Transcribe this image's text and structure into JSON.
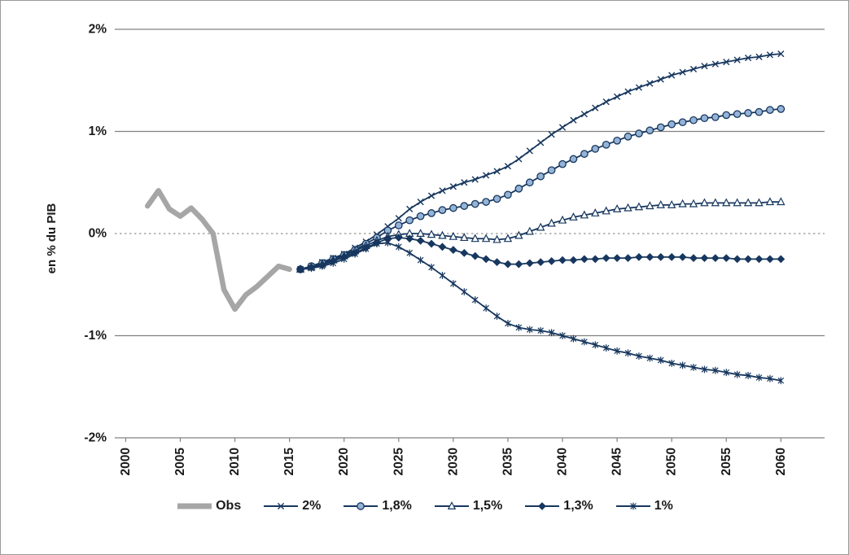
{
  "figure": {
    "background": "#FFFFFF",
    "border_color": "#999999"
  },
  "chart_data": {
    "type": "line",
    "title": "",
    "ylabel": "en % du PIB",
    "xlabel": "",
    "xlim": [
      1999,
      2064
    ],
    "ylim": [
      -2,
      2
    ],
    "grid": "horizontal solid at integers, dotted at zero",
    "legend_position": "bottom",
    "y_ticks": [
      {
        "value": 2,
        "label": "2%"
      },
      {
        "value": 1,
        "label": "1%"
      },
      {
        "value": 0,
        "label": "0%"
      },
      {
        "value": -1,
        "label": "-1%"
      },
      {
        "value": -2,
        "label": "-2%"
      }
    ],
    "x_ticks": [
      2000,
      2005,
      2010,
      2015,
      2020,
      2025,
      2030,
      2035,
      2040,
      2045,
      2050,
      2055,
      2060
    ],
    "colors": {
      "obs": "#A6A6A6",
      "projection": "#17375E",
      "circle_fill": "#95B3D7",
      "triangle_fill": "#FFFFFF",
      "grid": "#808080",
      "zero_grid": "#A6A6A6",
      "text": "#1A1A1A"
    },
    "series": [
      {
        "id": "obs",
        "name": "Obs",
        "marker": "none",
        "color_key": "obs",
        "width": 6.5,
        "x_start": 2002,
        "values": [
          0.27,
          0.42,
          0.24,
          0.17,
          0.25,
          0.14,
          0.0,
          -0.55,
          -0.74,
          -0.6,
          -0.52,
          -0.42,
          -0.32,
          -0.35
        ]
      },
      {
        "id": "g2",
        "name": "2%",
        "marker": "x",
        "color_key": "projection",
        "width": 1.8,
        "x_start": 2016,
        "values": [
          -0.35,
          -0.32,
          -0.28,
          -0.24,
          -0.2,
          -0.14,
          -0.08,
          -0.01,
          0.07,
          0.15,
          0.24,
          0.31,
          0.37,
          0.42,
          0.46,
          0.5,
          0.53,
          0.57,
          0.61,
          0.66,
          0.73,
          0.81,
          0.89,
          0.97,
          1.04,
          1.11,
          1.17,
          1.23,
          1.29,
          1.34,
          1.39,
          1.43,
          1.47,
          1.51,
          1.55,
          1.58,
          1.61,
          1.64,
          1.66,
          1.68,
          1.7,
          1.72,
          1.73,
          1.75,
          1.76
        ]
      },
      {
        "id": "g18",
        "name": "1,8%",
        "marker": "circle",
        "color_key": "projection",
        "width": 1.8,
        "x_start": 2016,
        "values": [
          -0.35,
          -0.32,
          -0.29,
          -0.25,
          -0.21,
          -0.16,
          -0.1,
          -0.04,
          0.03,
          0.08,
          0.13,
          0.17,
          0.2,
          0.23,
          0.25,
          0.27,
          0.29,
          0.31,
          0.34,
          0.38,
          0.44,
          0.5,
          0.56,
          0.62,
          0.68,
          0.73,
          0.78,
          0.83,
          0.87,
          0.91,
          0.95,
          0.98,
          1.01,
          1.04,
          1.07,
          1.09,
          1.11,
          1.13,
          1.14,
          1.16,
          1.17,
          1.18,
          1.19,
          1.21,
          1.22
        ]
      },
      {
        "id": "g15",
        "name": "1,5%",
        "marker": "triangle",
        "color_key": "projection",
        "width": 1.8,
        "x_start": 2016,
        "values": [
          -0.35,
          -0.33,
          -0.3,
          -0.26,
          -0.22,
          -0.17,
          -0.12,
          -0.07,
          -0.03,
          -0.01,
          0.0,
          0.0,
          -0.01,
          -0.02,
          -0.03,
          -0.04,
          -0.05,
          -0.05,
          -0.06,
          -0.05,
          -0.02,
          0.02,
          0.06,
          0.1,
          0.13,
          0.16,
          0.18,
          0.2,
          0.22,
          0.24,
          0.25,
          0.26,
          0.27,
          0.28,
          0.28,
          0.29,
          0.29,
          0.3,
          0.3,
          0.3,
          0.3,
          0.3,
          0.3,
          0.31,
          0.31
        ]
      },
      {
        "id": "g13",
        "name": "1,3%",
        "marker": "diamond",
        "color_key": "projection",
        "width": 1.8,
        "x_start": 2016,
        "values": [
          -0.35,
          -0.33,
          -0.31,
          -0.27,
          -0.23,
          -0.19,
          -0.14,
          -0.09,
          -0.05,
          -0.04,
          -0.05,
          -0.07,
          -0.1,
          -0.13,
          -0.16,
          -0.19,
          -0.22,
          -0.25,
          -0.28,
          -0.3,
          -0.3,
          -0.29,
          -0.28,
          -0.27,
          -0.26,
          -0.26,
          -0.25,
          -0.25,
          -0.24,
          -0.24,
          -0.24,
          -0.23,
          -0.23,
          -0.23,
          -0.23,
          -0.23,
          -0.24,
          -0.24,
          -0.24,
          -0.24,
          -0.25,
          -0.25,
          -0.25,
          -0.25,
          -0.25
        ]
      },
      {
        "id": "g10",
        "name": "1%",
        "marker": "star",
        "color_key": "projection",
        "width": 1.8,
        "x_start": 2016,
        "values": [
          -0.35,
          -0.34,
          -0.32,
          -0.29,
          -0.25,
          -0.2,
          -0.15,
          -0.1,
          -0.09,
          -0.13,
          -0.19,
          -0.26,
          -0.33,
          -0.41,
          -0.49,
          -0.57,
          -0.65,
          -0.73,
          -0.81,
          -0.88,
          -0.92,
          -0.94,
          -0.95,
          -0.97,
          -1.0,
          -1.03,
          -1.06,
          -1.09,
          -1.12,
          -1.15,
          -1.17,
          -1.2,
          -1.22,
          -1.24,
          -1.27,
          -1.29,
          -1.31,
          -1.33,
          -1.34,
          -1.36,
          -1.38,
          -1.39,
          -1.41,
          -1.42,
          -1.44
        ]
      }
    ],
    "legend_items": [
      "Obs",
      "2%",
      "1,8%",
      "1,5%",
      "1,3%",
      "1%"
    ]
  }
}
